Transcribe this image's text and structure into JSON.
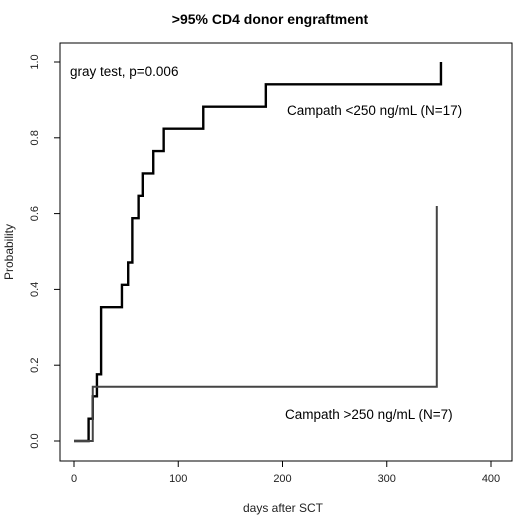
{
  "chart_data": {
    "type": "line",
    "title": ">95% CD4 donor engraftment",
    "xlabel": "days after SCT",
    "ylabel": "Probability",
    "xlim": [
      0,
      400
    ],
    "ylim": [
      0,
      1.0
    ],
    "x_ticks": [
      0,
      100,
      200,
      300,
      400
    ],
    "y_ticks": [
      0.0,
      0.2,
      0.4,
      0.6,
      0.8,
      1.0
    ],
    "x_tick_labels": [
      "0",
      "100",
      "200",
      "300",
      "400"
    ],
    "y_tick_labels": [
      "0.0",
      "0.2",
      "0.4",
      "0.6",
      "0.8",
      "1.0"
    ],
    "grid": false,
    "step": true,
    "series": [
      {
        "name": "Campath <250 ng/mL (N=17)",
        "color": "#000000",
        "x": [
          0,
          10,
          14,
          18,
          22,
          26,
          42,
          46,
          52,
          56,
          62,
          66,
          76,
          86,
          96,
          124,
          184,
          352,
          352
        ],
        "y": [
          0,
          0,
          0.059,
          0.118,
          0.176,
          0.353,
          0.353,
          0.412,
          0.471,
          0.588,
          0.647,
          0.706,
          0.765,
          0.824,
          0.824,
          0.882,
          0.941,
          0.941,
          1.0
        ]
      },
      {
        "name": "Campath >250 ng/mL (N=7)",
        "color": "#444444",
        "x": [
          0,
          15,
          18,
          348,
          348
        ],
        "y": [
          0,
          0,
          0.143,
          0.143,
          0.62
        ]
      }
    ],
    "annotations": {
      "test": "gray test, p=0.006",
      "label_1": "Campath <250 ng/mL (N=17)",
      "label_2": "Campath >250 ng/mL (N=7)"
    }
  }
}
